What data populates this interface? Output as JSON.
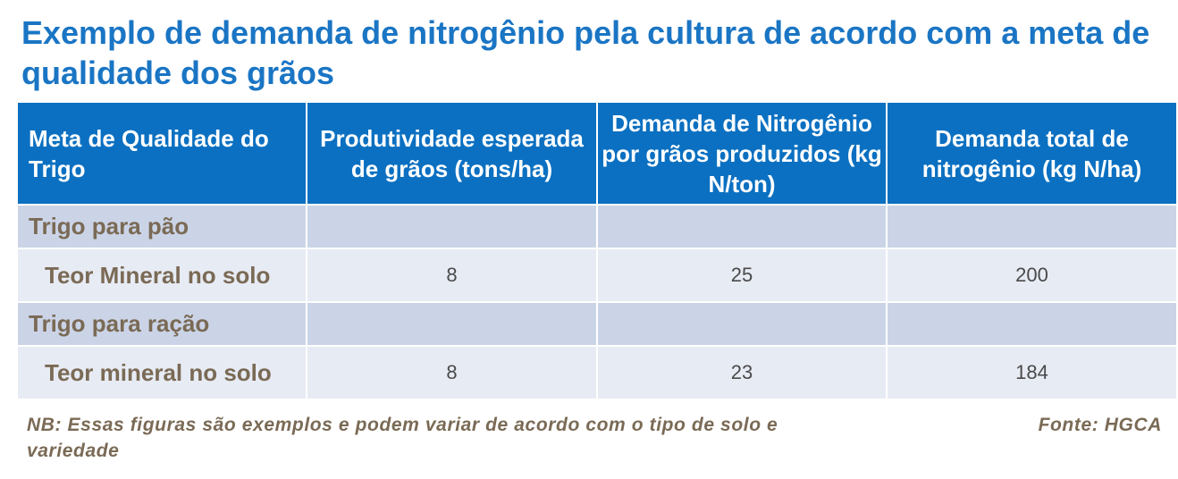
{
  "title": "Exemplo de demanda de nitrogênio pela cultura de acordo com a meta de qualidade dos grãos",
  "table": {
    "headers": [
      "Meta de Qualidade do Trigo",
      "Produtividade esperada de grãos (tons/ha)",
      "Demanda de Nitrogênio por grãos produzidos (kg N/ton)",
      "Demanda total de nitrogênio (kg N/ha)"
    ],
    "sections": [
      {
        "label": "Trigo para pão",
        "row": {
          "label": "Teor Mineral no solo",
          "yield": "8",
          "demand_per_ton": "25",
          "total_demand": "200"
        }
      },
      {
        "label": "Trigo para ração",
        "row": {
          "label": "Teor mineral no solo",
          "yield": "8",
          "demand_per_ton": "23",
          "total_demand": "184"
        }
      }
    ]
  },
  "footer": {
    "note": "NB: Essas figuras são exemplos e podem variar de acordo com o tipo de solo e variedade",
    "source": "Fonte: HGCA"
  },
  "colors": {
    "title": "#1a75c4",
    "header_bg": "#0b70c1",
    "section_row_bg": "#cbd4e7",
    "data_row_bg": "#e7ebf4",
    "label_text": "#7a6a55"
  }
}
